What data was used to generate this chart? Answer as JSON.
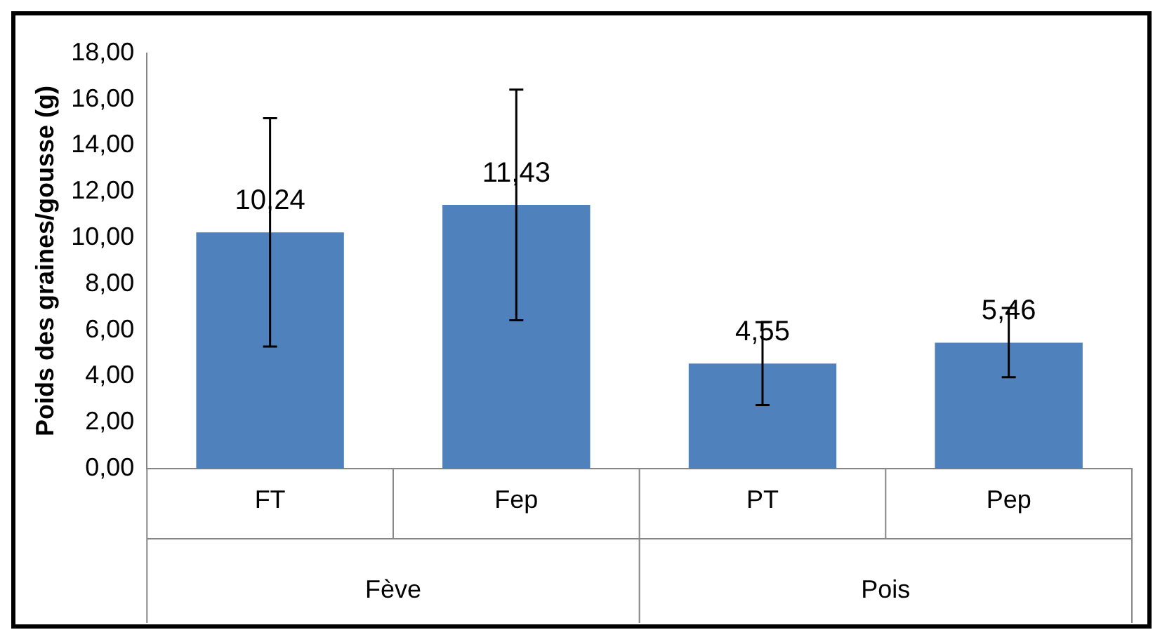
{
  "chart_data": {
    "type": "bar",
    "ylabel": "Poids des graines/gousse (g)",
    "categories": [
      "FT",
      "Fep",
      "PT",
      "Pep"
    ],
    "annotations": [
      "Fève",
      "Pois"
    ],
    "values": [
      10.24,
      11.43,
      4.55,
      5.46
    ],
    "value_labels": [
      "10,24",
      "11,43",
      "4,55",
      "5,46"
    ],
    "errors": [
      4.95,
      5.0,
      1.8,
      1.5
    ],
    "color": "#4f81bd",
    "ylim": [
      0,
      18
    ],
    "yticks": [
      {
        "value": 0,
        "label": "0,00"
      },
      {
        "value": 2,
        "label": "2,00"
      },
      {
        "value": 4,
        "label": "4,00"
      },
      {
        "value": 6,
        "label": "6,00"
      },
      {
        "value": 8,
        "label": "8,00"
      },
      {
        "value": 10,
        "label": "10,00"
      },
      {
        "value": 12,
        "label": "12,00"
      },
      {
        "value": 14,
        "label": "14,00"
      },
      {
        "value": 16,
        "label": "16,00"
      },
      {
        "value": 18,
        "label": "18,00"
      }
    ],
    "grid": false,
    "legend": false
  }
}
